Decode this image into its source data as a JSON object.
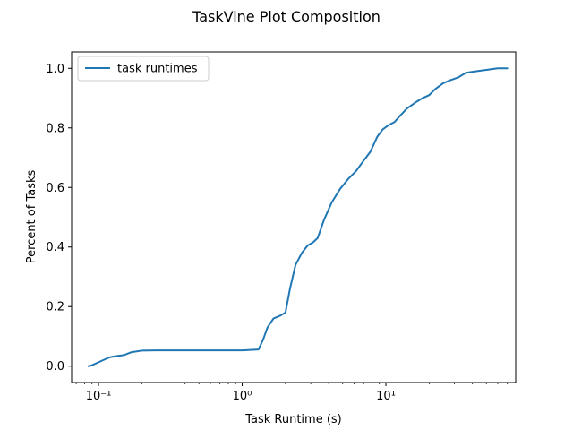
{
  "chart_data": {
    "type": "line",
    "title": "TaskVine Plot Composition",
    "xlabel": "Task Runtime (s)",
    "ylabel": "Percent of Tasks",
    "xscale": "log",
    "xlim": [
      0.065,
      80
    ],
    "ylim": [
      -0.055,
      1.055
    ],
    "grid": false,
    "legend_position": "top-left",
    "x_ticks": [
      {
        "value": 0.1,
        "label": "10⁻¹"
      },
      {
        "value": 1,
        "label": "10⁰"
      },
      {
        "value": 10,
        "label": "10¹"
      }
    ],
    "y_ticks": [
      {
        "value": 0.0,
        "label": "0.0"
      },
      {
        "value": 0.2,
        "label": "0.2"
      },
      {
        "value": 0.4,
        "label": "0.4"
      },
      {
        "value": 0.6,
        "label": "0.6"
      },
      {
        "value": 0.8,
        "label": "0.8"
      },
      {
        "value": 1.0,
        "label": "1.0"
      }
    ],
    "series": [
      {
        "name": "task runtimes",
        "color": "#1f77b4",
        "points": [
          [
            0.085,
            0.0
          ],
          [
            0.09,
            0.003
          ],
          [
            0.1,
            0.013
          ],
          [
            0.11,
            0.022
          ],
          [
            0.12,
            0.03
          ],
          [
            0.13,
            0.033
          ],
          [
            0.15,
            0.037
          ],
          [
            0.17,
            0.047
          ],
          [
            0.2,
            0.052
          ],
          [
            0.25,
            0.053
          ],
          [
            0.5,
            0.053
          ],
          [
            1.0,
            0.053
          ],
          [
            1.3,
            0.056
          ],
          [
            1.4,
            0.09
          ],
          [
            1.5,
            0.13
          ],
          [
            1.65,
            0.16
          ],
          [
            1.85,
            0.17
          ],
          [
            2.0,
            0.18
          ],
          [
            2.15,
            0.26
          ],
          [
            2.35,
            0.34
          ],
          [
            2.6,
            0.38
          ],
          [
            2.85,
            0.405
          ],
          [
            3.1,
            0.415
          ],
          [
            3.35,
            0.43
          ],
          [
            3.7,
            0.49
          ],
          [
            4.2,
            0.55
          ],
          [
            4.8,
            0.595
          ],
          [
            5.5,
            0.63
          ],
          [
            6.2,
            0.655
          ],
          [
            7.0,
            0.69
          ],
          [
            7.8,
            0.72
          ],
          [
            8.7,
            0.77
          ],
          [
            9.5,
            0.795
          ],
          [
            10.5,
            0.81
          ],
          [
            11.5,
            0.82
          ],
          [
            12.5,
            0.84
          ],
          [
            14.0,
            0.865
          ],
          [
            16.0,
            0.885
          ],
          [
            18.0,
            0.9
          ],
          [
            20.0,
            0.91
          ],
          [
            22.0,
            0.93
          ],
          [
            25.0,
            0.95
          ],
          [
            28.0,
            0.96
          ],
          [
            32.0,
            0.97
          ],
          [
            36.0,
            0.985
          ],
          [
            42.0,
            0.99
          ],
          [
            50.0,
            0.995
          ],
          [
            60.0,
            1.0
          ],
          [
            70.0,
            1.0
          ]
        ]
      }
    ]
  }
}
